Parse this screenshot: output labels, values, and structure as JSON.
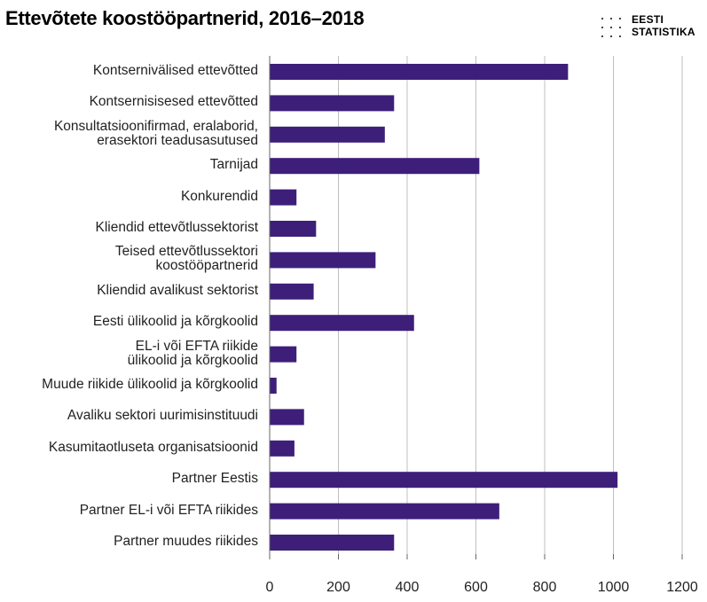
{
  "title": "Ettevõtete koostööpartnerid, 2016–2018",
  "logo": {
    "line1": "EESTI",
    "line2": "STATISTIKA"
  },
  "colors": {
    "bar": "#3d1f7a",
    "grid": "#bfbfbf",
    "axis": "#666666"
  },
  "chart_data": {
    "type": "bar",
    "orientation": "horizontal",
    "title": "Ettevõtete koostööpartnerid, 2016–2018",
    "xlabel": "",
    "ylabel": "",
    "xlim": [
      0,
      1200
    ],
    "xticks": [
      0,
      200,
      400,
      600,
      800,
      1000,
      1200
    ],
    "grid": true,
    "categories": [
      "Kontsernivälised ettevõtted",
      "Kontsernisisesed ettevõtted",
      "Konsultatsioonifirmad, eralaborid,\nerasektori teadusasutused",
      "Tarnijad",
      "Konkurendid",
      "Kliendid ettevõtlussektorist",
      "Teised ettevõtlussektori\nkoostööpartnerid",
      "Kliendid avalikust sektorist",
      "Eesti ülikoolid ja kõrgkoolid",
      "EL-i või EFTA riikide\nülikoolid ja kõrgkoolid",
      "Muude riikide ülikoolid ja kõrgkoolid",
      "Avaliku sektori uurimisinstituudi",
      "Kasumitaotluseta organisatsioonid",
      "Partner Eestis",
      "Partner EL-i või EFTA riikides",
      "Partner muudes riikides"
    ],
    "values": [
      868,
      362,
      335,
      610,
      78,
      135,
      308,
      128,
      420,
      78,
      20,
      100,
      72,
      1012,
      668,
      362
    ]
  }
}
